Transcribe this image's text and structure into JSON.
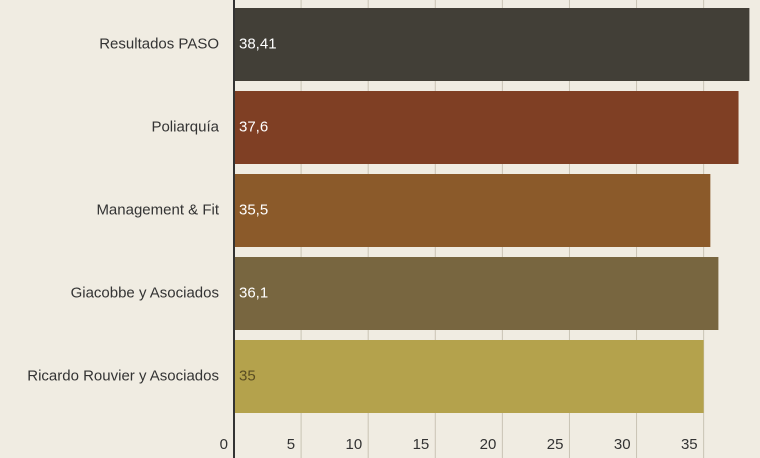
{
  "chart_data": {
    "type": "bar",
    "orientation": "horizontal",
    "categories": [
      "Resultados PASO",
      "Poliarquía",
      "Management & Fit",
      "Giacobbe y Asociados",
      "Ricardo Rouvier y Asociados"
    ],
    "values": [
      38.41,
      37.6,
      35.5,
      36.1,
      35
    ],
    "value_labels": [
      "38,41",
      "37,6",
      "35,5",
      "36,1",
      "35"
    ],
    "colors": [
      "#423f37",
      "#7f3f24",
      "#8b5a2a",
      "#786640",
      "#b4a24c"
    ],
    "xlim": [
      0,
      39.2
    ],
    "xticks": [
      0,
      5,
      10,
      15,
      20,
      25,
      30,
      35
    ],
    "grid": true
  }
}
